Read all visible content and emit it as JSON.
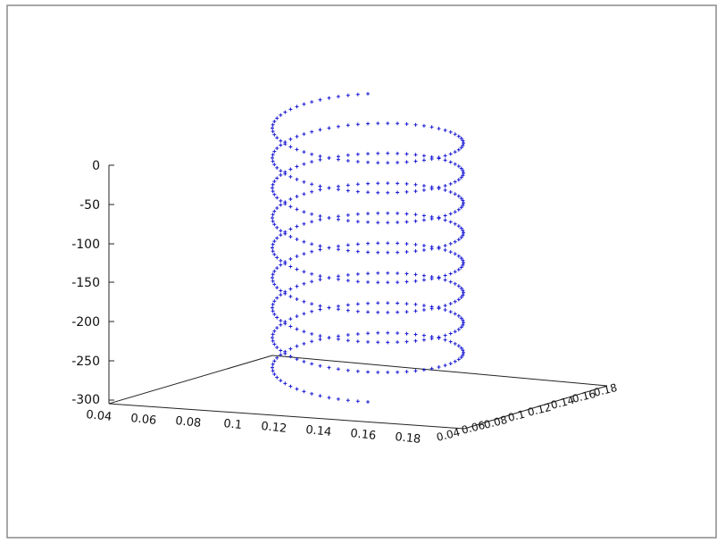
{
  "chart_data": {
    "type": "scatter",
    "title": "",
    "xlabel": "",
    "ylabel": "",
    "zlabel": "",
    "legend": "none",
    "grid": false,
    "marker": "plus",
    "colors": {
      "points": "#1a1ad4",
      "axes": "#222222",
      "border": "#777777"
    },
    "axes": {
      "x": {
        "range": [
          0.04,
          0.18
        ],
        "ticks": [
          "0.04",
          "0.06",
          "0.08",
          "0.1",
          "0.12",
          "0.14",
          "0.16",
          "0.18"
        ]
      },
      "y": {
        "range": [
          0.04,
          0.18
        ],
        "ticks": [
          "0.04",
          "0.06",
          "0.08",
          "0.1",
          "0.12",
          "0.14",
          "0.16",
          "0.18"
        ]
      },
      "z": {
        "range": [
          -300,
          0
        ],
        "ticks": [
          "0",
          "-50",
          "-100",
          "-150",
          "-200",
          "-250",
          "-300"
        ]
      }
    },
    "series": [
      {
        "shape": "helix",
        "x_center": 0.11,
        "y_center": 0.11,
        "radius": 0.07,
        "z_start": -290,
        "z_end": -5,
        "turns": 8.5,
        "points_per_turn": 60
      }
    ]
  }
}
